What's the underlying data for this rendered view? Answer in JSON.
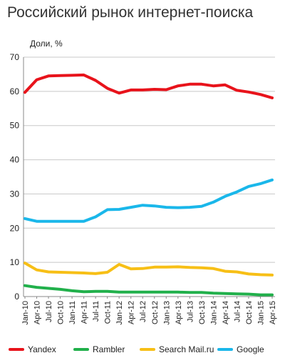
{
  "page": {
    "title": "Российский рынок интернет-поиска"
  },
  "chart_data": {
    "type": "line",
    "title": "Российский рынок интернет-поиска",
    "ylabel": "Доли, %",
    "xlabel": "",
    "ylim": [
      0,
      70
    ],
    "yticks": [
      0,
      10,
      20,
      30,
      40,
      50,
      60,
      70
    ],
    "grid": true,
    "legend_position": "bottom",
    "x": [
      "Jan-10",
      "Apr-10",
      "Jul-10",
      "Oct-10",
      "Jan-11",
      "Apr-11",
      "Jul-11",
      "Oct-11",
      "Jan-12",
      "Apr-12",
      "Jul-12",
      "Oct-12",
      "Jan-13",
      "Apr-13",
      "Jul-13",
      "Oct-13",
      "Jan-14",
      "Apr-14",
      "Jul-14",
      "Oct-14",
      "Jan-15",
      "Apr-15"
    ],
    "series": [
      {
        "name": "Yandex",
        "color": "#e8131b",
        "values": [
          59.7,
          63.4,
          64.5,
          64.6,
          64.7,
          64.8,
          63.2,
          60.9,
          59.5,
          60.4,
          60.4,
          60.6,
          60.5,
          61.6,
          62.1,
          62.1,
          61.6,
          61.9,
          60.3,
          59.8,
          59.1,
          58.1
        ]
      },
      {
        "name": "Rambler",
        "color": "#21b04b",
        "values": [
          3.2,
          2.7,
          2.4,
          2.1,
          1.7,
          1.4,
          1.5,
          1.5,
          1.3,
          1.3,
          1.3,
          1.3,
          1.3,
          1.3,
          1.2,
          1.2,
          1.0,
          0.9,
          0.8,
          0.7,
          0.5,
          0.5
        ]
      },
      {
        "name": "Search Mail.ru",
        "color": "#f7bf16",
        "values": [
          9.8,
          7.8,
          7.2,
          7.1,
          7.0,
          6.9,
          6.7,
          7.1,
          9.4,
          8.1,
          8.2,
          8.6,
          8.6,
          8.7,
          8.5,
          8.4,
          8.2,
          7.4,
          7.2,
          6.6,
          6.4,
          6.3
        ]
      },
      {
        "name": "Google",
        "color": "#1ab7ea",
        "values": [
          22.8,
          22.0,
          22.0,
          22.0,
          22.0,
          22.0,
          23.3,
          25.4,
          25.5,
          26.1,
          26.7,
          26.5,
          26.1,
          26.0,
          26.1,
          26.4,
          27.6,
          29.3,
          30.6,
          32.2,
          33.0,
          34.1
        ]
      }
    ]
  }
}
